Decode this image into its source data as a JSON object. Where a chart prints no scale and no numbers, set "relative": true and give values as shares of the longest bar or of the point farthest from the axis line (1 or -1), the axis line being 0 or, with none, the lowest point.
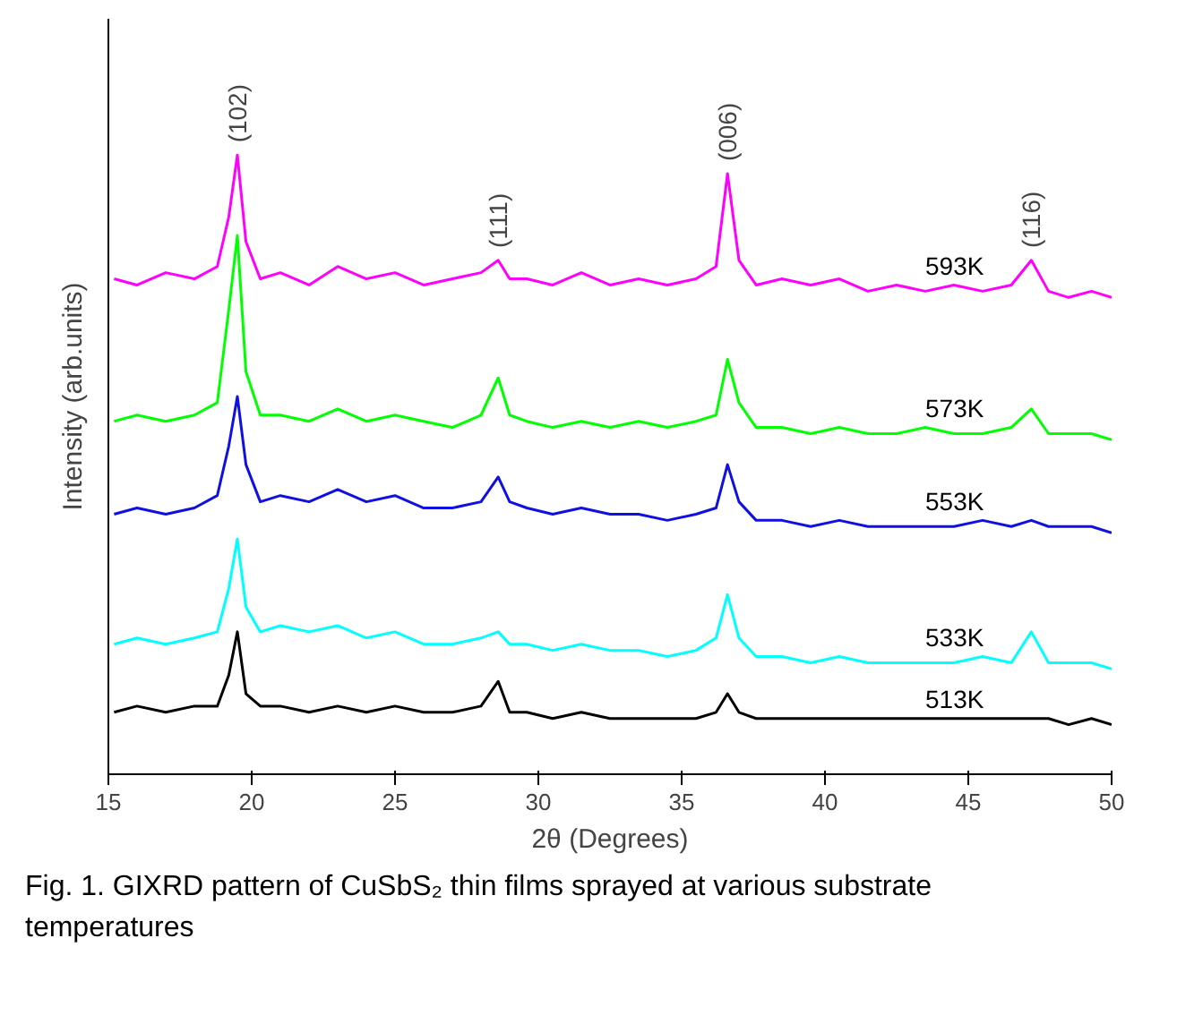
{
  "chart_data": {
    "type": "line",
    "relative": true,
    "xlabel": "2θ (Degrees)",
    "ylabel": "Intensity (arb.units)",
    "xlim": [
      15,
      50
    ],
    "xticks": [
      15,
      20,
      25,
      30,
      35,
      40,
      45,
      50
    ],
    "grid": false,
    "tick_labels": "x",
    "marker": "none",
    "line_style": "solid",
    "x": [
      15.2,
      16,
      17,
      18,
      18.8,
      19.2,
      19.5,
      19.8,
      20.3,
      21,
      22,
      23,
      24,
      25,
      26,
      27,
      28,
      28.6,
      29,
      29.6,
      30.5,
      31.5,
      32.5,
      33.5,
      34.5,
      35.5,
      36.2,
      36.6,
      37.0,
      37.6,
      38.5,
      39.5,
      40.5,
      41.5,
      42.5,
      43.5,
      44.5,
      45.5,
      46.5,
      47.2,
      47.8,
      48.5,
      49.3,
      50
    ],
    "series": [
      {
        "name": "593K",
        "color": "#ff00ff",
        "values": [
          0.8,
          0.79,
          0.81,
          0.8,
          0.82,
          0.9,
          1.0,
          0.86,
          0.8,
          0.81,
          0.79,
          0.82,
          0.8,
          0.81,
          0.79,
          0.8,
          0.81,
          0.83,
          0.8,
          0.8,
          0.79,
          0.81,
          0.79,
          0.8,
          0.79,
          0.8,
          0.82,
          0.97,
          0.83,
          0.79,
          0.8,
          0.79,
          0.8,
          0.78,
          0.79,
          0.78,
          0.79,
          0.78,
          0.79,
          0.83,
          0.78,
          0.77,
          0.78,
          0.77
        ]
      },
      {
        "name": "573K",
        "color": "#00ff00",
        "values": [
          0.57,
          0.58,
          0.57,
          0.58,
          0.6,
          0.75,
          0.87,
          0.65,
          0.58,
          0.58,
          0.57,
          0.59,
          0.57,
          0.58,
          0.57,
          0.56,
          0.58,
          0.64,
          0.58,
          0.57,
          0.56,
          0.57,
          0.56,
          0.57,
          0.56,
          0.57,
          0.58,
          0.67,
          0.6,
          0.56,
          0.56,
          0.55,
          0.56,
          0.55,
          0.55,
          0.56,
          0.55,
          0.55,
          0.56,
          0.59,
          0.55,
          0.55,
          0.55,
          0.54
        ]
      },
      {
        "name": "553K",
        "color": "#1010e0",
        "values": [
          0.42,
          0.43,
          0.42,
          0.43,
          0.45,
          0.53,
          0.61,
          0.5,
          0.44,
          0.45,
          0.44,
          0.46,
          0.44,
          0.45,
          0.43,
          0.43,
          0.44,
          0.48,
          0.44,
          0.43,
          0.42,
          0.43,
          0.42,
          0.42,
          0.41,
          0.42,
          0.43,
          0.5,
          0.44,
          0.41,
          0.41,
          0.4,
          0.41,
          0.4,
          0.4,
          0.4,
          0.4,
          0.41,
          0.4,
          0.41,
          0.4,
          0.4,
          0.4,
          0.39
        ]
      },
      {
        "name": "533K",
        "color": "#00ffff",
        "values": [
          0.21,
          0.22,
          0.21,
          0.22,
          0.23,
          0.3,
          0.38,
          0.27,
          0.23,
          0.24,
          0.23,
          0.24,
          0.22,
          0.23,
          0.21,
          0.21,
          0.22,
          0.23,
          0.21,
          0.21,
          0.2,
          0.21,
          0.2,
          0.2,
          0.19,
          0.2,
          0.22,
          0.29,
          0.22,
          0.19,
          0.19,
          0.18,
          0.19,
          0.18,
          0.18,
          0.18,
          0.18,
          0.19,
          0.18,
          0.23,
          0.18,
          0.18,
          0.18,
          0.17
        ]
      },
      {
        "name": "513K",
        "color": "#000000",
        "values": [
          0.1,
          0.11,
          0.1,
          0.11,
          0.11,
          0.16,
          0.23,
          0.13,
          0.11,
          0.11,
          0.1,
          0.11,
          0.1,
          0.11,
          0.1,
          0.1,
          0.11,
          0.15,
          0.1,
          0.1,
          0.09,
          0.1,
          0.09,
          0.09,
          0.09,
          0.09,
          0.1,
          0.13,
          0.1,
          0.09,
          0.09,
          0.09,
          0.09,
          0.09,
          0.09,
          0.09,
          0.09,
          0.09,
          0.09,
          0.09,
          0.09,
          0.08,
          0.09,
          0.08
        ]
      }
    ],
    "annotations": [
      {
        "text": "(102)",
        "x": 19.5,
        "y": 1.0
      },
      {
        "text": "(111)",
        "x": 28.6,
        "y": 0.83
      },
      {
        "text": "(006)",
        "x": 36.6,
        "y": 0.97
      },
      {
        "text": "(116)",
        "x": 47.2,
        "y": 0.83
      },
      "Fig. 1. GIXRD pattern of CuSbS₂ thin films sprayed at various substrate temperatures"
    ]
  }
}
